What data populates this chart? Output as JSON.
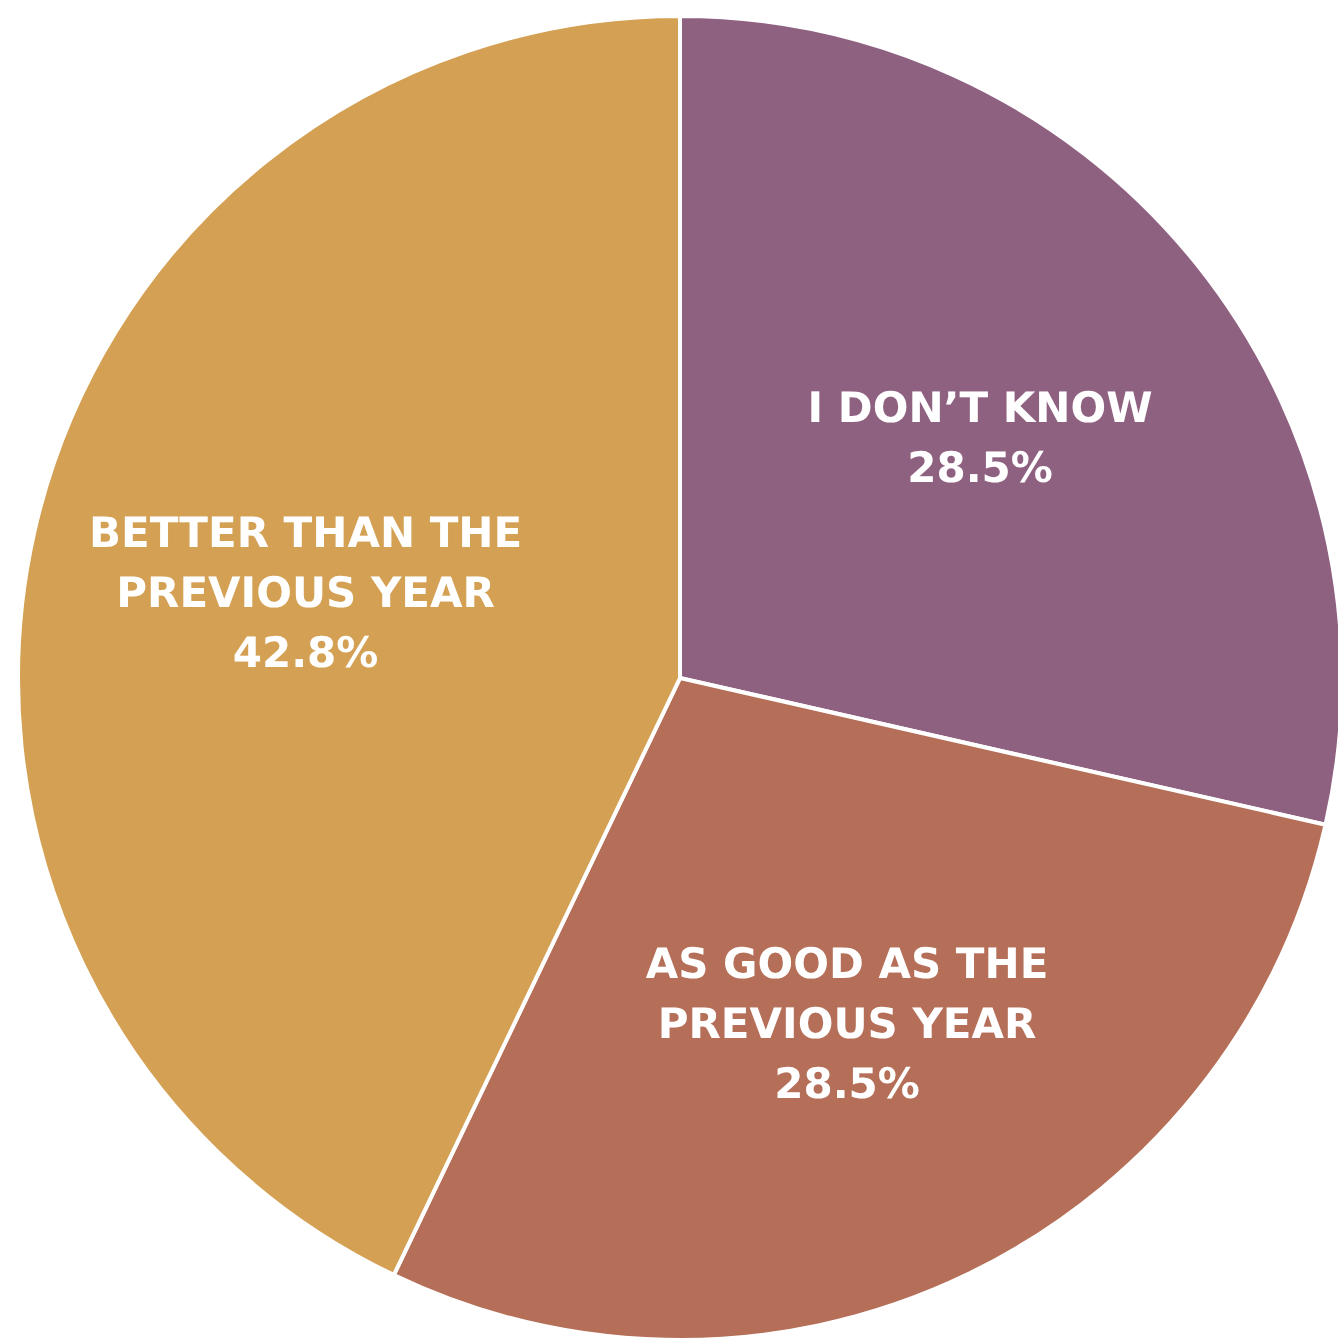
{
  "chart_data": {
    "type": "pie",
    "categories": [
      "I DON’T KNOW",
      "AS GOOD AS THE PREVIOUS YEAR",
      "BETTER THAN THE PREVIOUS YEAR"
    ],
    "values": [
      28.5,
      28.5,
      42.8
    ],
    "colors": [
      "#8f6180",
      "#b56e57",
      "#d4a053"
    ],
    "value_labels": [
      "28.5%",
      "28.5%",
      "42.8%"
    ],
    "legend": false
  }
}
